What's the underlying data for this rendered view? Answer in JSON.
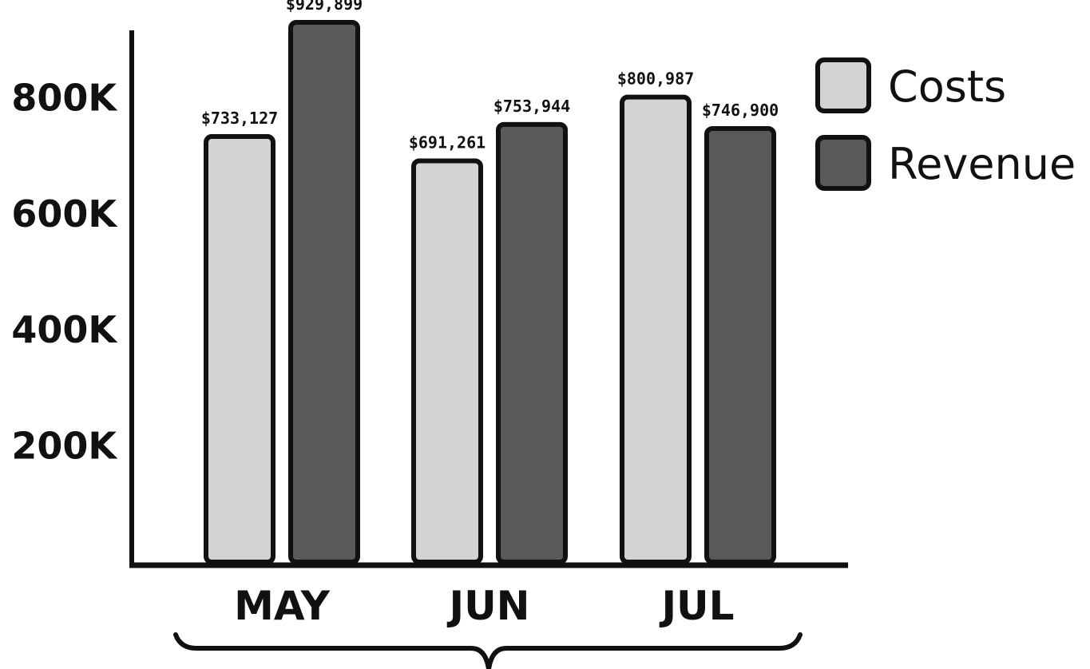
{
  "chart_data": {
    "type": "bar",
    "categories": [
      "MAY",
      "JUN",
      "JUL"
    ],
    "series": [
      {
        "name": "Costs",
        "values": [
          733127,
          691261,
          800987
        ],
        "labels": [
          "$733,127",
          "$691,261",
          "$800,987"
        ],
        "color": "#d3d3d3"
      },
      {
        "name": "Revenue",
        "values": [
          929899,
          753944,
          746900
        ],
        "labels": [
          "$929,899",
          "$753,944",
          "$746,900"
        ],
        "color": "#595959"
      }
    ],
    "yticks": [
      {
        "value": 200000,
        "label": "200K"
      },
      {
        "value": 400000,
        "label": "400K"
      },
      {
        "value": 600000,
        "label": "600K"
      },
      {
        "value": 800000,
        "label": "800K"
      }
    ],
    "ylim": [
      0,
      1000000
    ],
    "title": "",
    "xlabel": "",
    "ylabel": "",
    "grid": false,
    "legend_position": "top-right",
    "outline_color": "#111111"
  }
}
